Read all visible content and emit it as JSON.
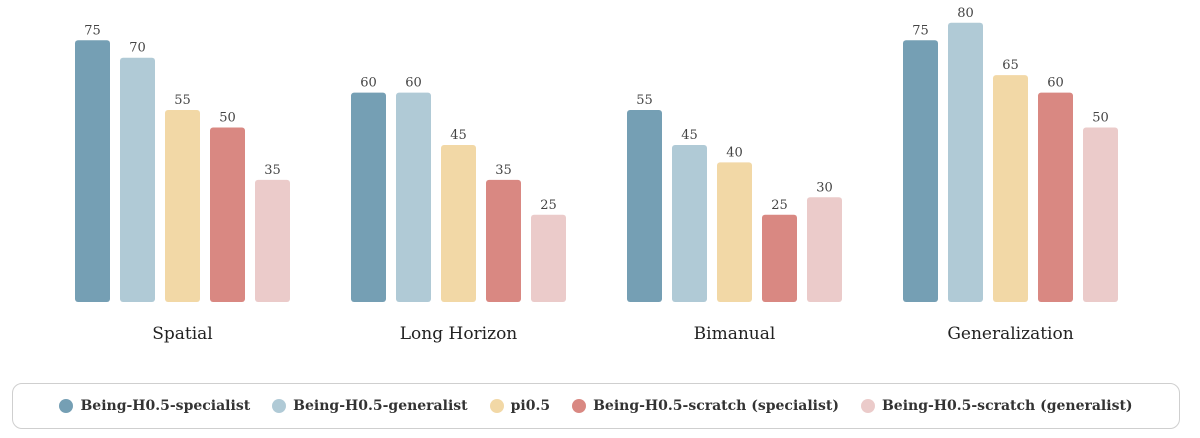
{
  "chart_data": {
    "type": "bar",
    "title": "",
    "xlabel": "",
    "ylabel": "",
    "ylim": [
      0,
      80
    ],
    "grid": false,
    "legend_position": "bottom",
    "categories": [
      "Spatial",
      "Long Horizon",
      "Bimanual",
      "Generalization"
    ],
    "series": [
      {
        "name": "Being-H0.5-specialist",
        "color": "#759fb4",
        "values": [
          75,
          60,
          55,
          75
        ]
      },
      {
        "name": "Being-H0.5-generalist",
        "color": "#b0cad6",
        "values": [
          70,
          60,
          45,
          80
        ]
      },
      {
        "name": "pi0.5",
        "color": "#f2d8a6",
        "values": [
          55,
          45,
          40,
          65
        ]
      },
      {
        "name": "Being-H0.5-scratch (specialist)",
        "color": "#d98882",
        "values": [
          50,
          35,
          25,
          60
        ]
      },
      {
        "name": "Being-H0.5-scratch (generalist)",
        "color": "#ebcbca",
        "values": [
          35,
          25,
          30,
          50
        ]
      }
    ]
  }
}
